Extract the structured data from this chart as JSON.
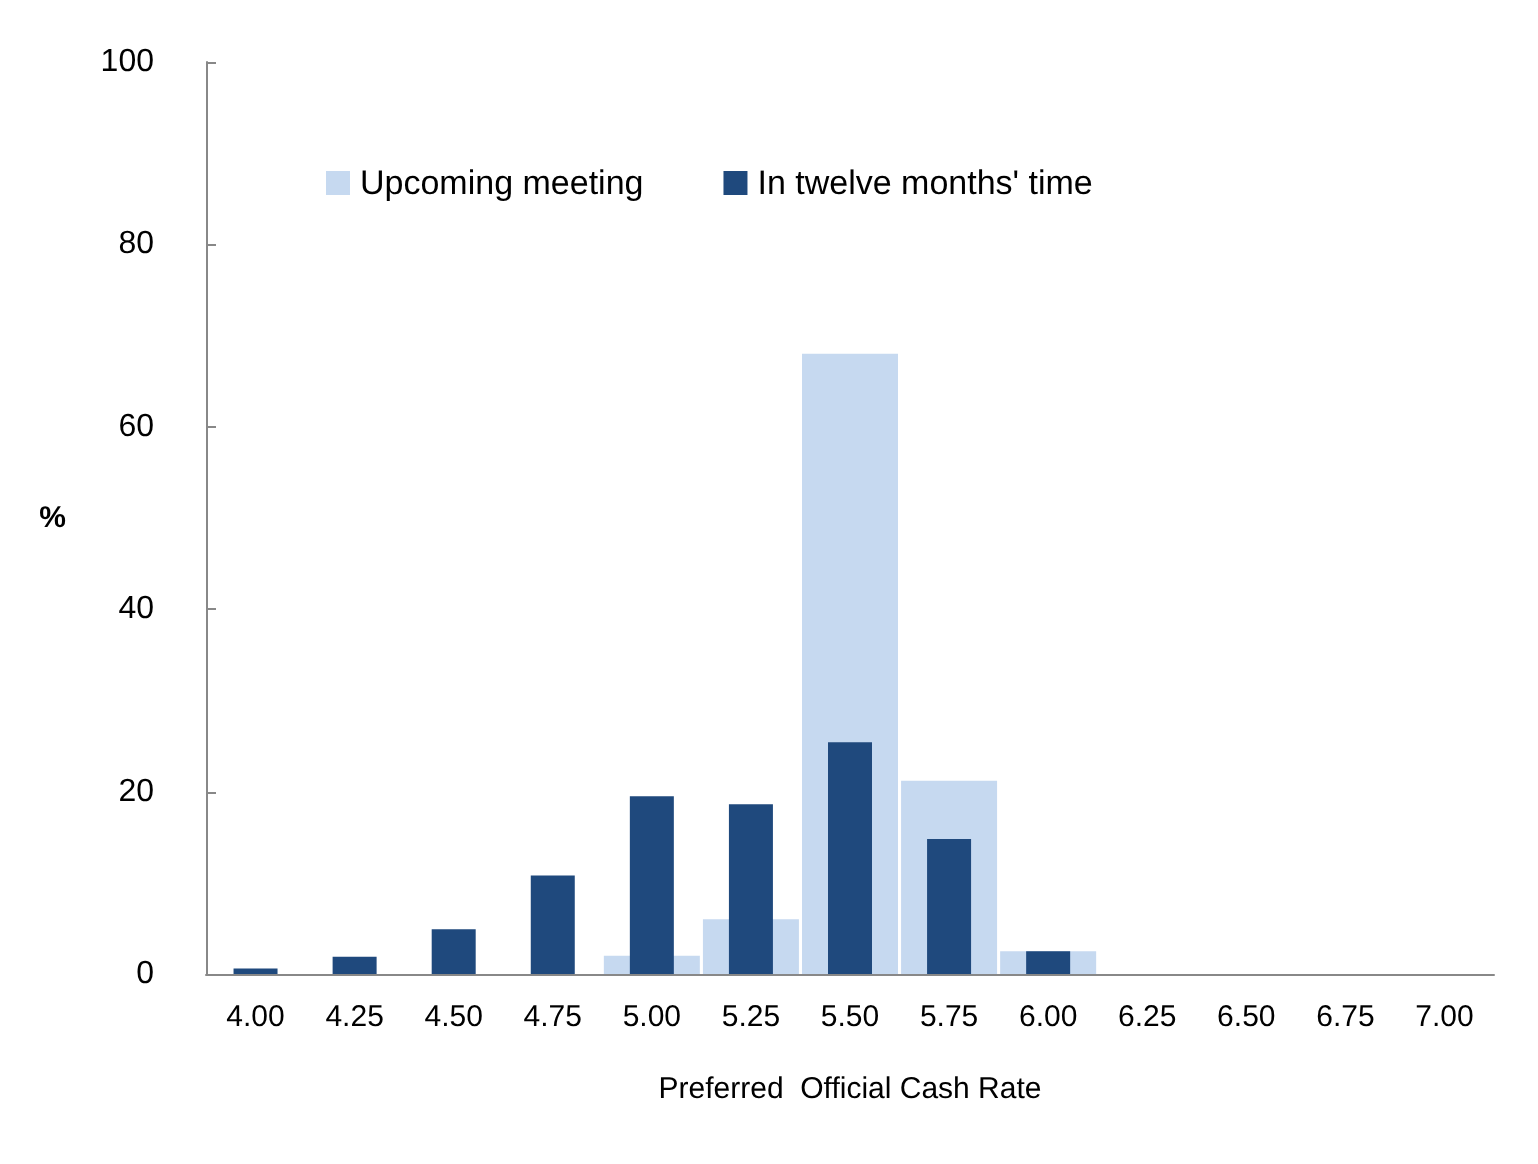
{
  "chart_data": {
    "type": "bar",
    "xlabel": "Preferred  Official Cash Rate",
    "ylabel": "%",
    "categories": [
      "4.00",
      "4.25",
      "4.50",
      "4.75",
      "5.00",
      "5.25",
      "5.50",
      "5.75",
      "6.00",
      "6.25",
      "6.50",
      "6.75",
      "7.00"
    ],
    "series": [
      {
        "name": "Upcoming meeting",
        "color": "#c6d9f0",
        "values": [
          0,
          0,
          0,
          0,
          2,
          6,
          68,
          21.2,
          2.5,
          0,
          0,
          0,
          0
        ]
      },
      {
        "name": "In twelve months' time",
        "color": "#1f497d",
        "values": [
          0.6,
          1.9,
          4.9,
          10.8,
          19.5,
          18.6,
          25.4,
          14.8,
          2.5,
          0,
          0,
          0,
          0
        ]
      }
    ],
    "ylim": [
      0,
      100
    ],
    "yticks": [
      0,
      20,
      40,
      60,
      80,
      100
    ],
    "grid": false,
    "legend": "top left"
  }
}
